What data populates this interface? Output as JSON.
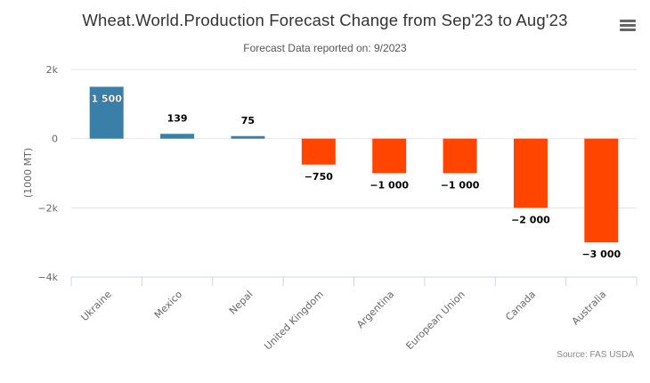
{
  "title": "Wheat.World.Production Forecast Change from Sep'23 to Aug'23",
  "subtitle": "Forecast Data reported on: 9/2023",
  "menu_icon": "hamburger-menu-icon",
  "credits": "Source: FAS USDA",
  "colors": {
    "positive": "#3a7fa8",
    "negative": "#ff4500",
    "grid": "#e6e6e6",
    "axis": "#ccd6eb"
  },
  "chart_data": {
    "type": "bar",
    "title": "Wheat.World.Production Forecast Change from Sep'23 to Aug'23",
    "subtitle": "Forecast Data reported on: 9/2023",
    "xlabel": "",
    "ylabel": "(1000 MT)",
    "categories": [
      "Ukraine",
      "Mexico",
      "Nepal",
      "United Kingdom",
      "Argentina",
      "European Union",
      "Canada",
      "Australia"
    ],
    "values": [
      1500,
      139,
      75,
      -750,
      -1000,
      -1000,
      -2000,
      -3000
    ],
    "data_labels": [
      "1 500",
      "139",
      "75",
      "−750",
      "−1 000",
      "−1 000",
      "−2 000",
      "−3 000"
    ],
    "ylim": [
      -4000,
      2000
    ],
    "yticks": [
      2000,
      0,
      -2000,
      -4000
    ],
    "ytick_labels": [
      "2k",
      "0",
      "−2k",
      "−4k"
    ],
    "grid": true,
    "legend": "none"
  }
}
